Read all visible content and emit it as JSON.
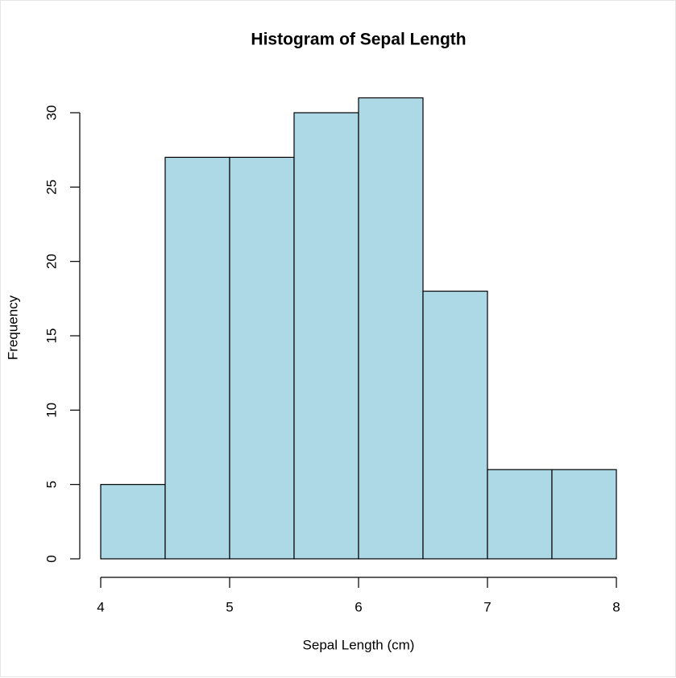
{
  "chart_data": {
    "type": "histogram",
    "title": "Histogram of Sepal Length",
    "x_label": "Sepal Length (cm)",
    "y_label": "Frequency",
    "bins": [
      4,
      4.5,
      5,
      5.5,
      6,
      6.5,
      7,
      7.5,
      8
    ],
    "values": [
      5,
      27,
      27,
      30,
      31,
      18,
      6,
      6
    ],
    "color": "#add8e6",
    "xlim": [
      4,
      8
    ],
    "xticks": [
      4,
      5,
      6,
      7,
      8
    ],
    "ylim": [
      0,
      31
    ],
    "yticks": [
      0,
      5,
      10,
      15,
      20,
      25,
      30
    ]
  }
}
